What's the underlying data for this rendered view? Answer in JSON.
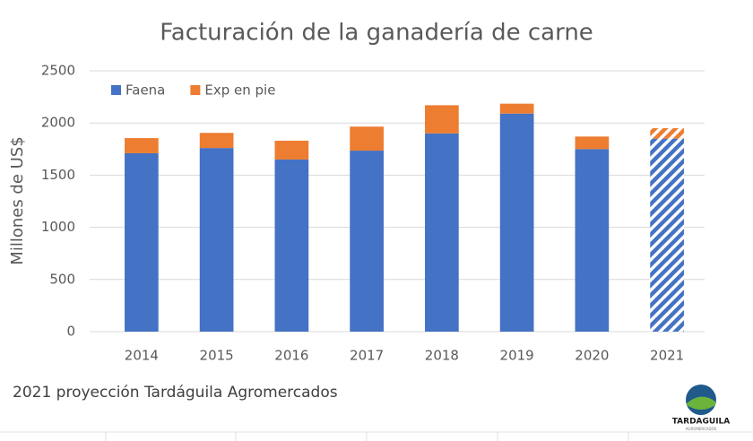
{
  "chart_data": {
    "type": "stacked_bar",
    "title": "Facturación de la ganadería de carne",
    "y_label": "Millones de US$",
    "categories": [
      "2014",
      "2015",
      "2016",
      "2017",
      "2018",
      "2019",
      "2020",
      "2021"
    ],
    "series": [
      {
        "name": "Faena",
        "color": "#4472c4",
        "values": [
          1710,
          1760,
          1650,
          1735,
          1900,
          2090,
          1750,
          1850
        ],
        "hatched": [
          false,
          false,
          false,
          false,
          false,
          false,
          false,
          true
        ]
      },
      {
        "name": "Exp en pie",
        "color": "#ed7d31",
        "values": [
          145,
          145,
          180,
          230,
          270,
          95,
          120,
          100
        ],
        "hatched": [
          false,
          false,
          false,
          false,
          false,
          false,
          false,
          true
        ]
      }
    ],
    "ylim": [
      0,
      2500
    ],
    "yticks": [
      0,
      500,
      1000,
      1500,
      2000,
      2500
    ],
    "grid": true,
    "legend": "top-left",
    "note": "2021 proyección Tardáguila Agromercados",
    "logo": {
      "name": "TARDAGUILA",
      "subtitle": "AGROMERCADOS"
    }
  }
}
